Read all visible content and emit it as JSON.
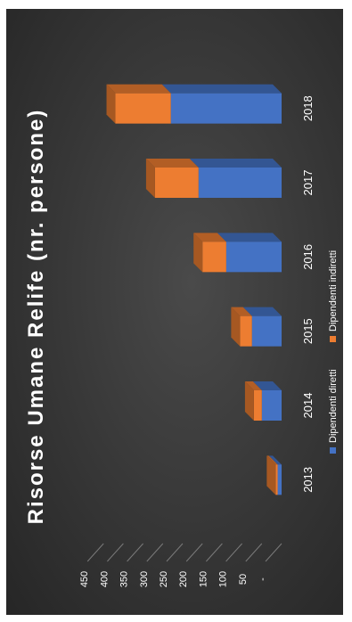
{
  "chart_data": {
    "type": "bar",
    "stacked": true,
    "three_d": true,
    "orientation": "rotated-90-clockwise",
    "title": "Risorse Umane Relife (nr. persone)",
    "categories": [
      "2013",
      "2014",
      "2015",
      "2016",
      "2017",
      "2018"
    ],
    "series": [
      {
        "name": "Dipendenti diretti",
        "color": "#4472C4",
        "values": [
          10,
          50,
          75,
          140,
          210,
          280
        ]
      },
      {
        "name": "Dipendenti indiretti",
        "color": "#ED7D31",
        "values": [
          5,
          20,
          30,
          60,
          110,
          140
        ]
      }
    ],
    "y_ticks": [
      "-",
      "50",
      "100",
      "150",
      "200",
      "250",
      "300",
      "350",
      "400",
      "450"
    ],
    "ylim": [
      0,
      450
    ],
    "grid": true,
    "legend_position": "bottom"
  }
}
